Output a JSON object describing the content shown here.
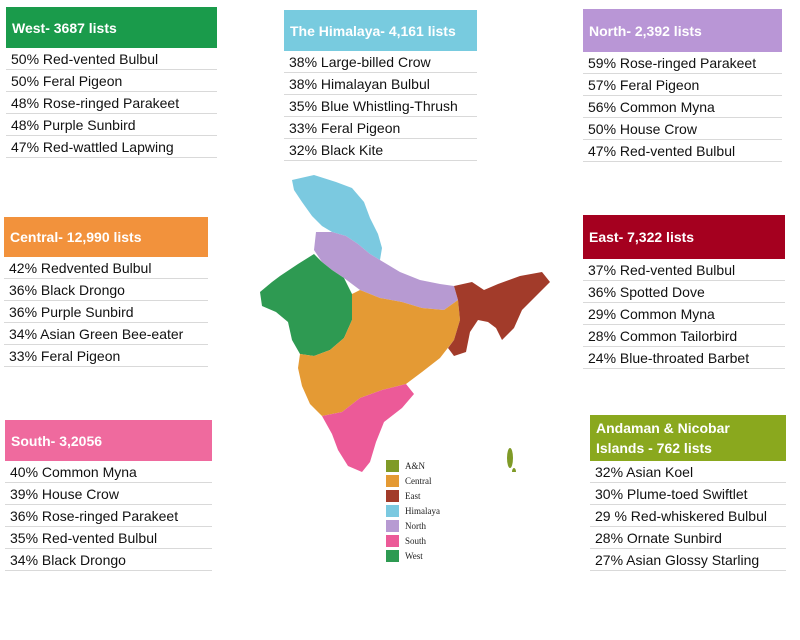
{
  "chart_data": {
    "type": "table",
    "title": "",
    "regions": [
      {
        "id": "west",
        "title": "West- 3687 lists",
        "color": "#1a9b4b",
        "rows": [
          "50% Red-vented Bulbul",
          "50% Feral Pigeon",
          "48% Rose-ringed Parakeet",
          "48% Purple Sunbird",
          "47% Red-wattled Lapwing"
        ]
      },
      {
        "id": "himalaya",
        "title": "The Himalaya- 4,161 lists",
        "color": "#78cbdf",
        "rows": [
          "38% Large-billed Crow",
          "38% Himalayan Bulbul",
          "35% Blue Whistling-Thrush",
          "33% Feral Pigeon",
          "32% Black Kite"
        ]
      },
      {
        "id": "north",
        "title": "North- 2,392 lists",
        "color": "#b996d6",
        "rows": [
          "59% Rose-ringed Parakeet",
          "57% Feral Pigeon",
          "56% Common Myna",
          "50% House Crow",
          "47% Red-vented Bulbul"
        ]
      },
      {
        "id": "central",
        "title": "Central- 12,990 lists",
        "color": "#f2923c",
        "rows": [
          "42% Redvented Bulbul",
          "36% Black Drongo",
          "36% Purple Sunbird",
          "34% Asian Green Bee-eater",
          "33% Feral Pigeon"
        ]
      },
      {
        "id": "east",
        "title": "East-  7,322 lists",
        "color": "#a5001f",
        "rows": [
          "37% Red-vented Bulbul",
          "36% Spotted Dove",
          "29% Common Myna",
          "28% Common Tailorbird",
          "24% Blue-throated Barbet"
        ]
      },
      {
        "id": "south",
        "title": "South- 3,2056",
        "color": "#ef6a9e",
        "rows": [
          "40% Common Myna",
          "39% House Crow",
          "36% Rose-ringed Parakeet",
          "35% Red-vented Bulbul",
          "34% Black Drongo"
        ]
      },
      {
        "id": "andaman",
        "title": "Andaman & Nicobar Islands - 762 lists",
        "color": "#8aa81e",
        "rows": [
          "32% Asian Koel",
          "30% Plume-toed Swiftlet",
          "29 % Red-whiskered Bulbul",
          "28% Ornate Sunbird",
          "27% Asian Glossy Starling"
        ]
      }
    ],
    "legend": [
      {
        "label": "A&N",
        "color": "#7f9a27"
      },
      {
        "label": "Central",
        "color": "#e49a34"
      },
      {
        "label": "East",
        "color": "#a23b2a"
      },
      {
        "label": "Himalaya",
        "color": "#7bc9e0"
      },
      {
        "label": "North",
        "color": "#b79ad2"
      },
      {
        "label": "South",
        "color": "#ec5a98"
      },
      {
        "label": "West",
        "color": "#2e9a52"
      }
    ]
  }
}
